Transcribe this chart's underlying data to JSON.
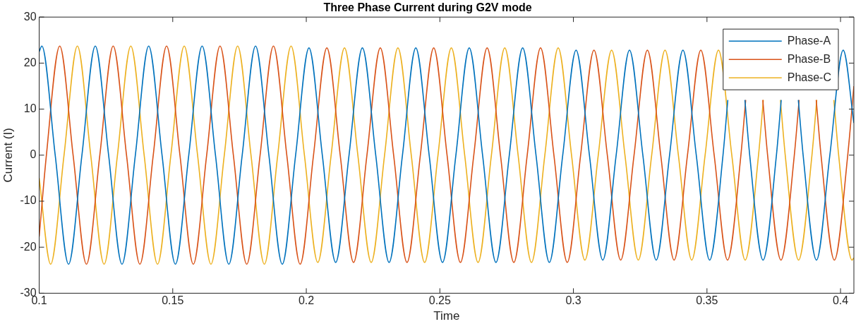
{
  "chart_data": {
    "type": "line",
    "title": "Three Phase Current during G2V mode",
    "xlabel": "Time",
    "ylabel": "Current (I)",
    "xlim": [
      0.1,
      0.405
    ],
    "xticks": [
      0.1,
      0.15,
      0.2,
      0.25,
      0.3,
      0.35,
      0.4
    ],
    "ylim": [
      -30,
      30
    ],
    "yticks": [
      -30,
      -20,
      -10,
      0,
      10,
      20,
      30
    ],
    "grid": false,
    "legend": "top right",
    "marker": "none",
    "line_style": "solid",
    "series": [
      {
        "name": "Phase-A",
        "color": "#0072bd",
        "x": [
          0.1,
          0.101,
          0.106,
          0.111,
          0.116,
          0.121,
          0.126,
          0.131,
          0.136,
          0.141,
          0.146,
          0.151,
          0.156,
          0.161,
          0.166,
          0.171,
          0.176,
          0.181,
          0.186,
          0.191,
          0.196,
          0.201,
          0.206,
          0.211,
          0.216,
          0.221,
          0.226,
          0.231,
          0.236,
          0.241,
          0.246,
          0.251,
          0.256,
          0.261,
          0.266,
          0.271,
          0.276,
          0.281,
          0.286,
          0.291,
          0.296,
          0.301,
          0.306,
          0.311,
          0.316,
          0.321,
          0.326,
          0.331,
          0.336,
          0.341,
          0.346,
          0.351,
          0.356,
          0.3578,
          0.361,
          0.3642,
          0.366,
          0.371,
          0.376,
          0.3778,
          0.381,
          0.3842,
          0.386,
          0.391,
          0.396,
          0.401,
          0.405
        ],
        "values": [
          22.5,
          23.7,
          0,
          -23.7,
          0,
          23.7,
          0,
          -23.7,
          0,
          23.7,
          0,
          -23.7,
          0,
          23.7,
          0,
          -23.7,
          0,
          23.7,
          0,
          -23.7,
          0,
          23.3,
          0,
          -23.3,
          0,
          23.3,
          0,
          -23.3,
          0,
          23.3,
          0,
          -23.3,
          0,
          23.3,
          0,
          -23.3,
          0,
          23.3,
          0,
          -23.3,
          0,
          22.8,
          0,
          -22.8,
          0,
          22.8,
          0,
          -22.8,
          0,
          22.8,
          0,
          -22.8,
          0,
          12,
          null,
          12,
          0,
          -22.8,
          0,
          12,
          null,
          12,
          0,
          -22.8,
          0,
          22.8,
          7
        ]
      },
      {
        "name": "Phase-B",
        "color": "#d95319",
        "x": [
          0.1,
          0.1027,
          0.1077,
          0.1127,
          0.1177,
          0.1227,
          0.1277,
          0.1327,
          0.1377,
          0.1427,
          0.1477,
          0.1527,
          0.1577,
          0.1627,
          0.1677,
          0.1727,
          0.1777,
          0.1827,
          0.1877,
          0.1927,
          0.1977,
          0.2027,
          0.2077,
          0.2127,
          0.2177,
          0.2227,
          0.2277,
          0.2327,
          0.2377,
          0.2427,
          0.2477,
          0.2527,
          0.2577,
          0.2627,
          0.2677,
          0.2727,
          0.2777,
          0.2827,
          0.2877,
          0.2927,
          0.2977,
          0.3027,
          0.3077,
          0.3127,
          0.3177,
          0.3227,
          0.3277,
          0.3327,
          0.3377,
          0.3427,
          0.3477,
          0.3527,
          0.3577,
          0.3627,
          0.3645,
          0.3677,
          0.3709,
          0.3727,
          0.3777,
          0.3827,
          0.3845,
          0.3877,
          0.3909,
          0.3927,
          0.3977,
          0.4027,
          0.405
        ],
        "values": [
          -17.7,
          0,
          23.7,
          0,
          -23.7,
          0,
          23.7,
          0,
          -23.7,
          0,
          23.7,
          0,
          -23.7,
          0,
          23.7,
          0,
          -23.7,
          0,
          23.7,
          0,
          -23.7,
          0,
          23.3,
          0,
          -23.3,
          0,
          23.3,
          0,
          -23.3,
          0,
          23.3,
          0,
          -23.3,
          0,
          23.3,
          0,
          -23.3,
          0,
          23.3,
          0,
          -23.3,
          0,
          22.8,
          0,
          -22.8,
          0,
          22.8,
          0,
          -22.8,
          0,
          22.8,
          0,
          -22.8,
          0,
          12,
          null,
          12,
          0,
          -22.8,
          0,
          12,
          null,
          12,
          0,
          -22.8,
          0,
          15
        ]
      },
      {
        "name": "Phase-C",
        "color": "#edb120",
        "x": [
          0.1,
          0.1043,
          0.1093,
          0.1143,
          0.1193,
          0.1243,
          0.1293,
          0.1343,
          0.1393,
          0.1443,
          0.1493,
          0.1543,
          0.1593,
          0.1643,
          0.1693,
          0.1743,
          0.1793,
          0.1843,
          0.1893,
          0.1943,
          0.1993,
          0.2043,
          0.2093,
          0.2143,
          0.2193,
          0.2243,
          0.2293,
          0.2343,
          0.2393,
          0.2443,
          0.2493,
          0.2543,
          0.2593,
          0.2643,
          0.2693,
          0.2743,
          0.2793,
          0.2843,
          0.2893,
          0.2943,
          0.2993,
          0.3043,
          0.3093,
          0.3143,
          0.3193,
          0.3243,
          0.3293,
          0.3343,
          0.3393,
          0.3443,
          0.3493,
          0.3543,
          0.3593,
          0.3643,
          0.3693,
          0.3711,
          0.3743,
          0.3775,
          0.3793,
          0.3843,
          0.3893,
          0.3911,
          0.3943,
          0.3975,
          0.3993,
          0.4043,
          0.405
        ],
        "values": [
          -5,
          -23.7,
          0,
          23.7,
          0,
          -23.7,
          0,
          23.7,
          0,
          -23.7,
          0,
          23.7,
          0,
          -23.7,
          0,
          23.7,
          0,
          -23.7,
          0,
          23.7,
          0,
          -23.3,
          0,
          23.3,
          0,
          -23.3,
          0,
          23.3,
          0,
          -23.3,
          0,
          23.3,
          0,
          -23.3,
          0,
          23.3,
          0,
          -23.3,
          0,
          23.3,
          0,
          -22.8,
          0,
          22.8,
          0,
          -22.8,
          0,
          22.8,
          0,
          -22.8,
          0,
          22.8,
          0,
          -22.8,
          0,
          12,
          null,
          12,
          0,
          -22.8,
          0,
          12,
          null,
          12,
          0,
          -22.8,
          -22.3
        ]
      }
    ]
  }
}
